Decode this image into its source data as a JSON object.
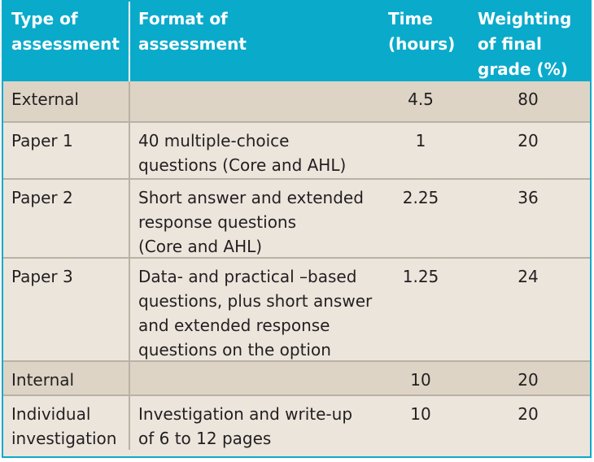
{
  "header": {
    "type_lines": [
      "Type of",
      "assessment"
    ],
    "format_lines": [
      "Format of",
      "assessment"
    ],
    "time_lines": [
      "Time",
      "(hours)"
    ],
    "weight_lines": [
      "Weighting",
      "of final",
      "grade (%)"
    ]
  },
  "rows": [
    {
      "type": [
        "External"
      ],
      "format": [],
      "time": "4.5",
      "weight": "80",
      "shaded": true
    },
    {
      "type": [
        "Paper 1"
      ],
      "format": [
        "40 multiple-choice",
        "questions (Core and AHL)"
      ],
      "time": "1",
      "weight": "20",
      "shaded": false
    },
    {
      "type": [
        "Paper 2"
      ],
      "format": [
        "Short answer and extended",
        "response questions",
        "(Core and AHL)"
      ],
      "time": "2.25",
      "weight": "36",
      "shaded": false
    },
    {
      "type": [
        "Paper 3"
      ],
      "format": [
        "Data- and practical –based",
        "questions, plus short answer",
        "and extended response",
        "questions on the option"
      ],
      "time": "1.25",
      "weight": "24",
      "shaded": false
    },
    {
      "type": [
        "Internal"
      ],
      "format": [],
      "time": "10",
      "weight": "20",
      "shaded": true
    },
    {
      "type": [
        "Individual",
        "investigation"
      ],
      "format": [
        "Investigation and write-up",
        "of 6 to 12 pages"
      ],
      "time": "10",
      "weight": "20",
      "shaded": false
    }
  ],
  "colors": {
    "header_bg": "#0aaacb",
    "shaded_row_bg": "#ddd4c6",
    "row_bg": "#ebe5dc",
    "divider": "#b9b1a5"
  }
}
